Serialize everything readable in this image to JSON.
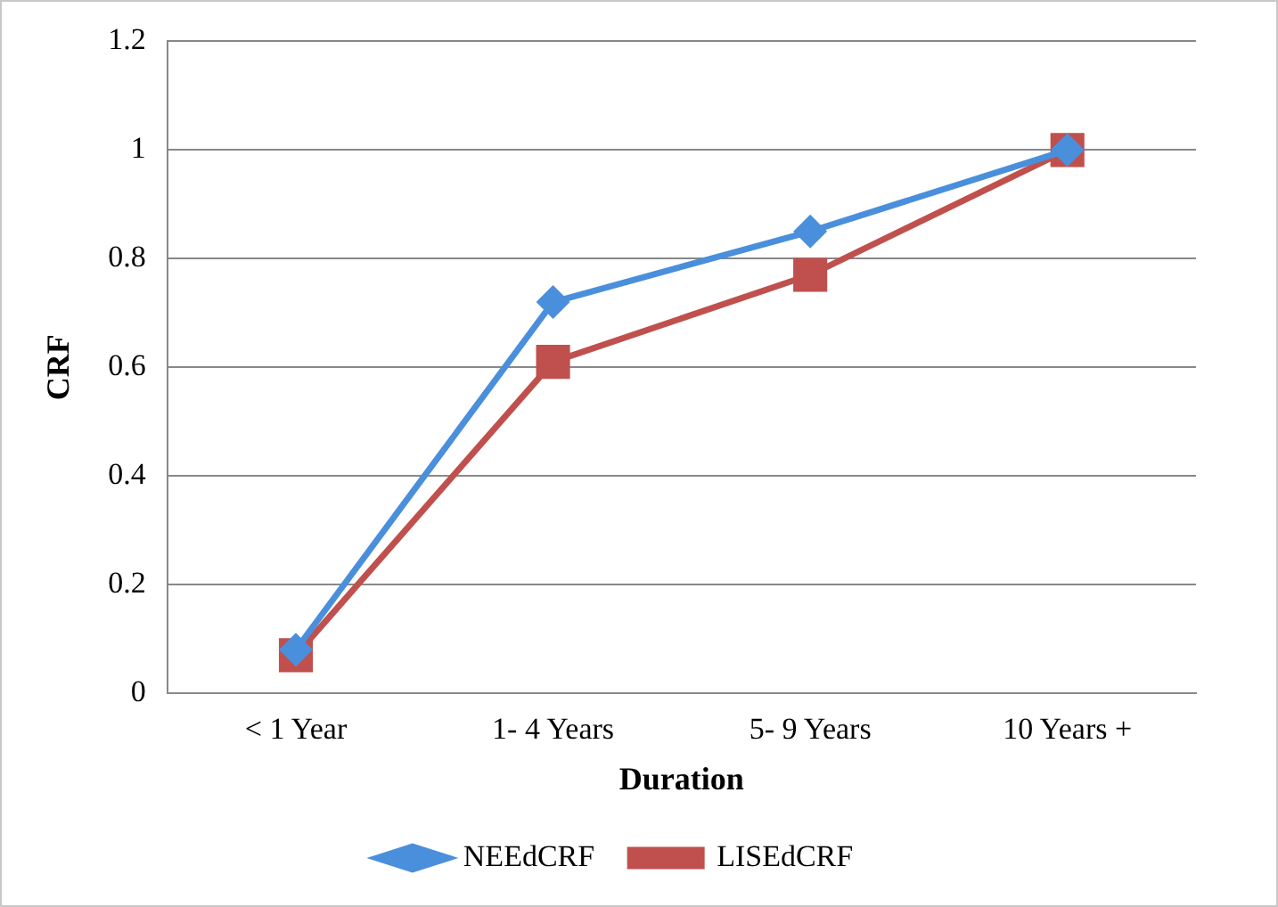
{
  "chart_data": {
    "type": "line",
    "xlabel": "Duration",
    "ylabel": "CRF",
    "categories": [
      "< 1 Year",
      "1- 4 Years",
      "5- 9 Years",
      "10 Years +"
    ],
    "series": [
      {
        "name": "NEEdCRF",
        "color": "#4a8fdc",
        "marker": "diamond",
        "values": [
          0.08,
          0.72,
          0.85,
          1.0
        ]
      },
      {
        "name": "LISEdCRF",
        "color": "#c0504d",
        "marker": "square",
        "values": [
          0.07,
          0.61,
          0.77,
          1.0
        ]
      }
    ],
    "ylim": [
      0,
      1.2
    ],
    "yticks": [
      0,
      0.2,
      0.4,
      0.6,
      0.8,
      1,
      1.2
    ],
    "grid": "y",
    "legend": "bottom",
    "line_style": "solid"
  }
}
